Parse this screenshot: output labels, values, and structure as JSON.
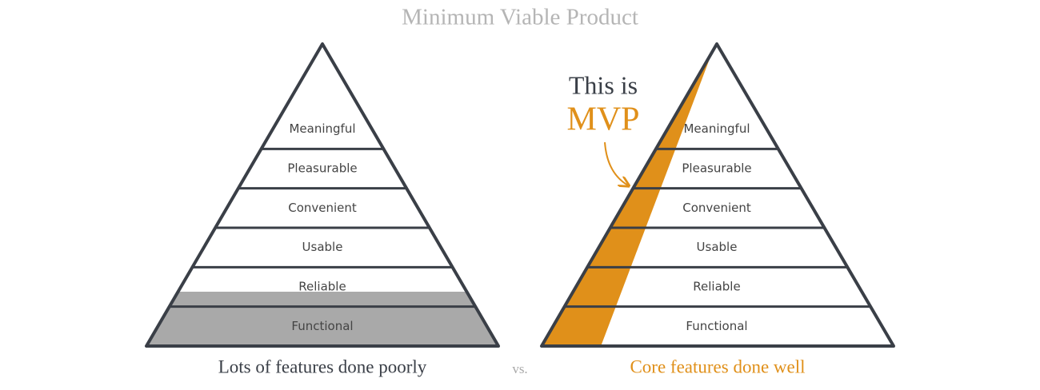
{
  "title": "Minimum Viable Product",
  "left": {
    "layers": [
      "Meaningful",
      "Pleasurable",
      "Convenient",
      "Usable",
      "Reliable",
      "Functional"
    ],
    "caption": "Lots of features done poorly"
  },
  "separator": "vs.",
  "right": {
    "callout": [
      "This is",
      "MVP"
    ],
    "layers": [
      "Meaningful",
      "Pleasurable",
      "Convenient",
      "Usable",
      "Reliable",
      "Functional"
    ],
    "caption": "Core features done well"
  }
}
